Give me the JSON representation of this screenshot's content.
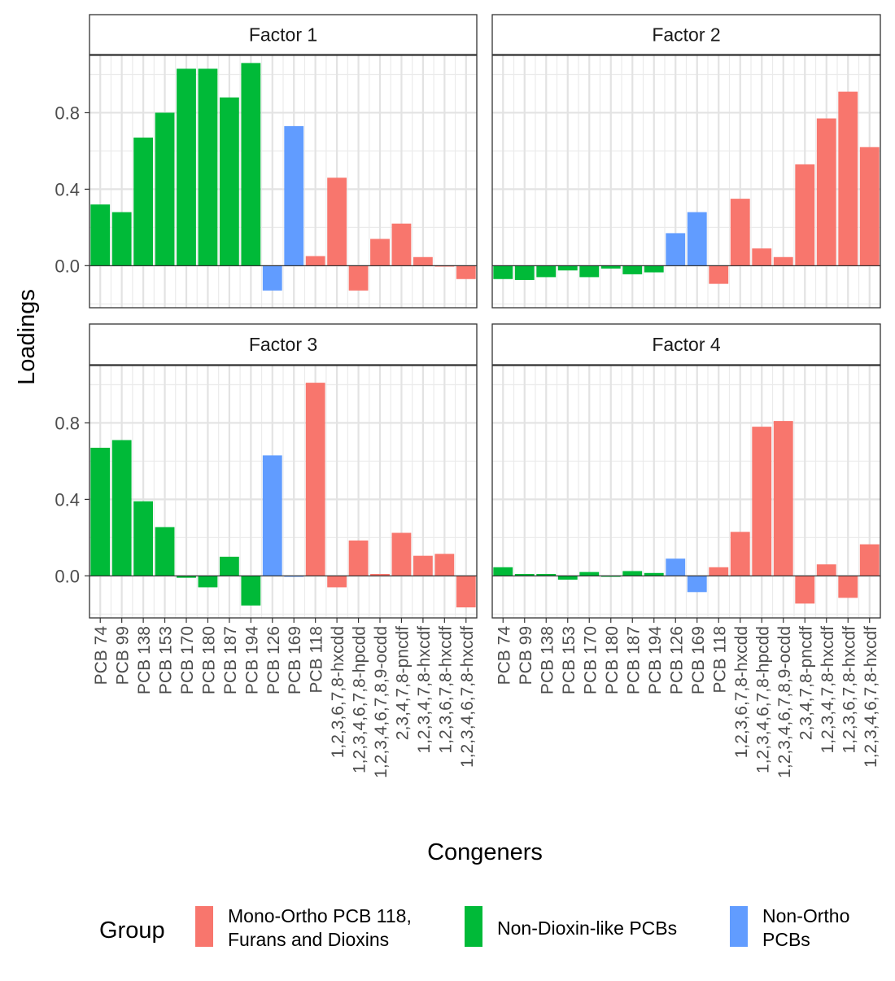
{
  "chart_data": {
    "type": "bar",
    "facet_layout": "2x2",
    "xlabel": "Congeners",
    "ylabel": "Loadings",
    "ylim": [
      -0.22,
      1.1
    ],
    "y_ticks": [
      0.0,
      0.4,
      0.8
    ],
    "y_tick_labels": [
      "0.0",
      "0.4",
      "0.8"
    ],
    "grid": true,
    "categories": [
      "PCB 74",
      "PCB 99",
      "PCB 138",
      "PCB 153",
      "PCB 170",
      "PCB 180",
      "PCB 187",
      "PCB 194",
      "PCB 126",
      "PCB 169",
      "PCB 118",
      "1,2,3,6,7,8-hxcdd",
      "1,2,3,4,6,7,8-hpcdd",
      "1,2,3,4,6,7,8,9-ocdd",
      "2,3,4,7,8-pncdf",
      "1,2,3,4,7,8-hxcdf",
      "1,2,3,6,7,8-hxcdf",
      "1,2,3,4,6,7,8-hxcdf"
    ],
    "category_groups": [
      1,
      1,
      1,
      1,
      1,
      1,
      1,
      1,
      2,
      2,
      0,
      0,
      0,
      0,
      0,
      0,
      0,
      0
    ],
    "legend": {
      "title": "Group",
      "position": "bottom",
      "entries": [
        {
          "label_lines": [
            "Mono-Ortho PCB 118,",
            "Furans and Dioxins"
          ],
          "color": "#F8766D"
        },
        {
          "label_lines": [
            "Non-Dioxin-like PCBs"
          ],
          "color": "#00BA38"
        },
        {
          "label_lines": [
            "Non-Ortho",
            "PCBs"
          ],
          "color": "#619CFF"
        }
      ]
    },
    "panels": [
      {
        "title": "Factor 1",
        "values": [
          0.32,
          0.28,
          0.67,
          0.8,
          1.03,
          1.03,
          0.88,
          1.06,
          -0.13,
          0.73,
          0.05,
          0.46,
          -0.13,
          0.14,
          0.22,
          0.045,
          -0.005,
          -0.07
        ]
      },
      {
        "title": "Factor 2",
        "values": [
          -0.07,
          -0.075,
          -0.06,
          -0.025,
          -0.06,
          -0.015,
          -0.045,
          -0.035,
          0.17,
          0.28,
          -0.095,
          0.35,
          0.09,
          0.045,
          0.53,
          0.77,
          0.91,
          0.62
        ]
      },
      {
        "title": "Factor 3",
        "values": [
          0.67,
          0.71,
          0.39,
          0.255,
          -0.01,
          -0.06,
          0.1,
          -0.155,
          0.63,
          -0.005,
          1.01,
          -0.06,
          0.185,
          0.01,
          0.225,
          0.105,
          0.115,
          -0.165
        ]
      },
      {
        "title": "Factor 4",
        "values": [
          0.045,
          0.01,
          0.01,
          -0.02,
          0.02,
          -0.005,
          0.025,
          0.015,
          0.09,
          -0.085,
          0.045,
          0.23,
          0.78,
          0.81,
          -0.145,
          0.06,
          -0.115,
          0.165
        ]
      }
    ]
  }
}
